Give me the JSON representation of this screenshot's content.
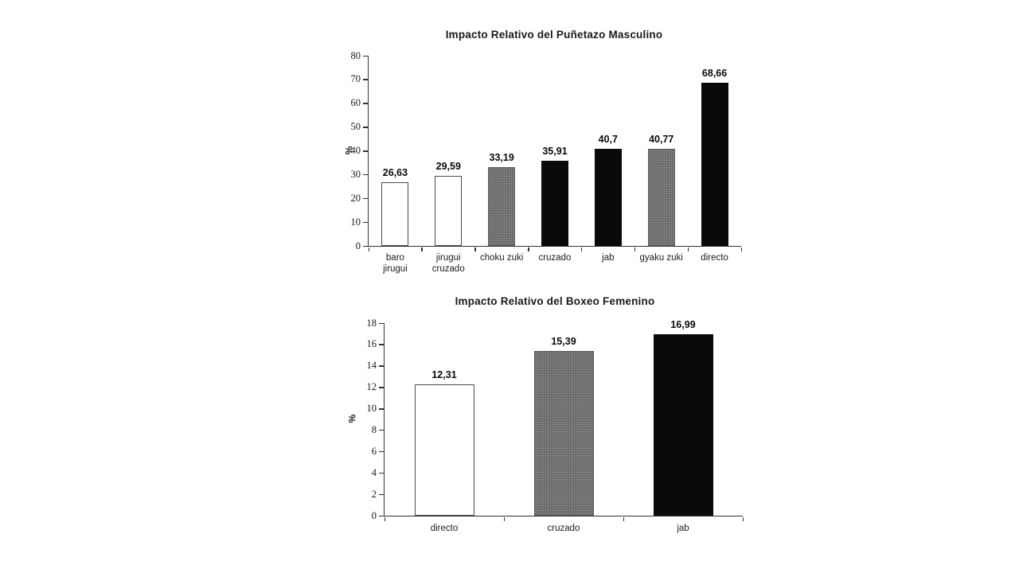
{
  "colors": {
    "white_bar": "#ffffff",
    "gray_bar": "#6b6b6b",
    "black_bar": "#0a0a0a",
    "axis": "#333333",
    "text": "#000000"
  },
  "chart_data": [
    {
      "type": "bar",
      "title": "Impacto Relativo del Puñetazo Masculino",
      "xlabel": "",
      "ylabel": "%",
      "ylim": [
        0,
        80
      ],
      "yticks": [
        0,
        10,
        20,
        30,
        40,
        50,
        60,
        70,
        80
      ],
      "grid": false,
      "legend": false,
      "categories": [
        "baro\njirugui",
        "jirugui\ncruzado",
        "choku zuki",
        "cruzado",
        "jab",
        "gyaku zuki",
        "directo"
      ],
      "values": [
        26.63,
        29.59,
        33.19,
        35.91,
        40.7,
        40.77,
        68.66
      ],
      "value_labels": [
        "26,63",
        "29,59",
        "33,19",
        "35,91",
        "40,7",
        "40,77",
        "68,66"
      ],
      "bar_colors": [
        "white",
        "white",
        "gray",
        "black",
        "black",
        "gray",
        "black"
      ]
    },
    {
      "type": "bar",
      "title": "Impacto Relativo del Boxeo Femenino",
      "xlabel": "",
      "ylabel": "%",
      "ylim": [
        0,
        18
      ],
      "yticks": [
        0,
        2,
        4,
        6,
        8,
        10,
        12,
        14,
        16,
        18
      ],
      "grid": false,
      "legend": false,
      "categories": [
        "directo",
        "cruzado",
        "jab"
      ],
      "values": [
        12.31,
        15.39,
        16.99
      ],
      "value_labels": [
        "12,31",
        "15,39",
        "16,99"
      ],
      "bar_colors": [
        "white",
        "gray",
        "black"
      ]
    }
  ]
}
